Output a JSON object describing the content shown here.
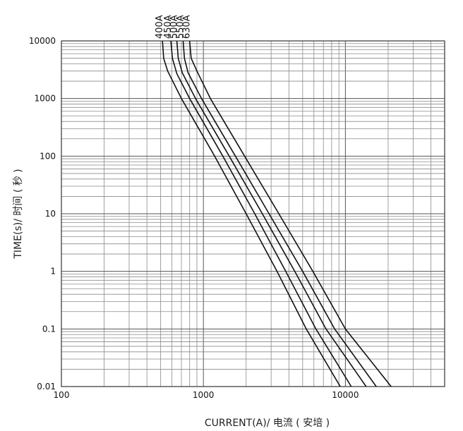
{
  "chart_data": {
    "type": "line",
    "xlabel": "CURRENT(A)/ 电流 ( 安培 )",
    "ylabel": "TIME(s)/ 时间 ( 秒 )",
    "x_scale": "log",
    "y_scale": "log",
    "xlim": [
      100,
      50000
    ],
    "ylim": [
      0.01,
      10000
    ],
    "x_ticks": [
      "100",
      "1000",
      "10000"
    ],
    "y_ticks": [
      "0.01",
      "0.1",
      "1",
      "10",
      "100",
      "1000",
      "10000"
    ],
    "grid": true,
    "series": [
      {
        "name": "400A",
        "points": [
          [
            515,
            10000
          ],
          [
            525,
            5000
          ],
          [
            560,
            3000
          ],
          [
            700,
            1000
          ],
          [
            1200,
            100
          ],
          [
            2000,
            10
          ],
          [
            3300,
            1
          ],
          [
            5300,
            0.1
          ],
          [
            9200,
            0.01
          ]
        ]
      },
      {
        "name": "450A",
        "points": [
          [
            590,
            10000
          ],
          [
            605,
            5000
          ],
          [
            650,
            2700
          ],
          [
            800,
            1000
          ],
          [
            1370,
            100
          ],
          [
            2300,
            10
          ],
          [
            3800,
            1
          ],
          [
            6200,
            0.1
          ],
          [
            11000,
            0.01
          ]
        ]
      },
      {
        "name": "500A",
        "points": [
          [
            650,
            10000
          ],
          [
            665,
            5000
          ],
          [
            710,
            2800
          ],
          [
            880,
            1000
          ],
          [
            1520,
            100
          ],
          [
            2600,
            10
          ],
          [
            4400,
            1
          ],
          [
            7300,
            0.1
          ],
          [
            14000,
            0.01
          ]
        ]
      },
      {
        "name": "550A",
        "points": [
          [
            720,
            10000
          ],
          [
            735,
            5000
          ],
          [
            780,
            2800
          ],
          [
            970,
            1000
          ],
          [
            1680,
            100
          ],
          [
            2900,
            10
          ],
          [
            5000,
            1
          ],
          [
            8400,
            0.1
          ],
          [
            16500,
            0.01
          ]
        ]
      },
      {
        "name": "630A",
        "points": [
          [
            800,
            10000
          ],
          [
            820,
            5000
          ],
          [
            900,
            3000
          ],
          [
            1120,
            1000
          ],
          [
            1950,
            100
          ],
          [
            3400,
            10
          ],
          [
            5900,
            1
          ],
          [
            10000,
            0.1
          ],
          [
            21000,
            0.01
          ]
        ]
      }
    ]
  }
}
